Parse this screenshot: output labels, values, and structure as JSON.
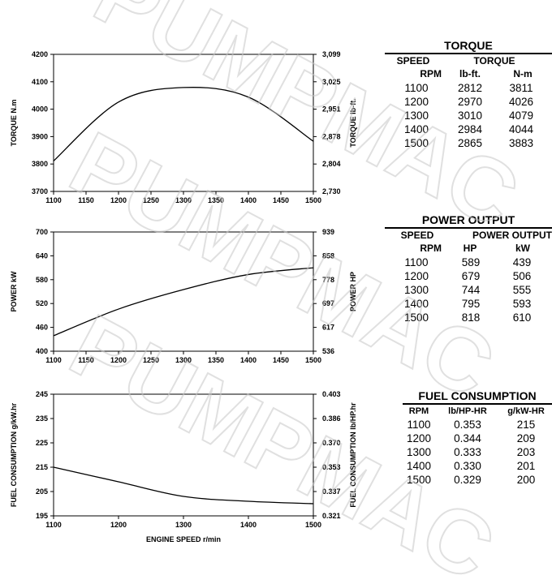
{
  "chart_data": [
    {
      "type": "line",
      "name": "torque",
      "x": [
        1100,
        1200,
        1300,
        1400,
        1500
      ],
      "series": [
        {
          "values": [
            3811,
            4026,
            4079,
            4044,
            3883
          ]
        }
      ],
      "xlim": [
        1100,
        1500
      ],
      "xticks": [
        "1100",
        "1150",
        "1200",
        "1250",
        "1300",
        "1350",
        "1400",
        "1450",
        "1500"
      ],
      "ylim": [
        3700,
        4200
      ],
      "yticks": [
        "3700",
        "3800",
        "3900",
        "4000",
        "4100",
        "4200"
      ],
      "ylabel": "TORQUE  N.m",
      "y2ticks": [
        "2,730",
        "2,804",
        "2,878",
        "2,951",
        "3,025",
        "3,099"
      ],
      "y2label": "TORQUE  lb-ft.",
      "xlabel": "",
      "grid": false
    },
    {
      "type": "line",
      "name": "power",
      "x": [
        1100,
        1200,
        1300,
        1400,
        1500
      ],
      "series": [
        {
          "values": [
            439,
            506,
            555,
            593,
            610
          ]
        }
      ],
      "xlim": [
        1100,
        1500
      ],
      "xticks": [
        "1100",
        "1150",
        "1200",
        "1250",
        "1300",
        "1350",
        "1400",
        "1450",
        "1500"
      ],
      "ylim": [
        400,
        700
      ],
      "yticks": [
        "400",
        "460",
        "520",
        "580",
        "640",
        "700"
      ],
      "ylabel": "POWER  kW",
      "y2ticks": [
        "536",
        "617",
        "697",
        "778",
        "858",
        "939"
      ],
      "y2label": "POWER  HP",
      "xlabel": "",
      "grid": false
    },
    {
      "type": "line",
      "name": "fuel",
      "x": [
        1100,
        1200,
        1300,
        1400,
        1500
      ],
      "series": [
        {
          "values": [
            215,
            209,
            203,
            201,
            200
          ]
        }
      ],
      "xlim": [
        1100,
        1500
      ],
      "xticks": [
        "1100",
        "1200",
        "1300",
        "1400",
        "1500"
      ],
      "ylim": [
        195,
        245
      ],
      "yticks": [
        "195",
        "205",
        "215",
        "225",
        "235",
        "245"
      ],
      "ylabel": "FUEL CONSUMPTION   g/kW.hr",
      "y2ticks": [
        "0.321",
        "0.337",
        "0.353",
        "0.370",
        "0.386",
        "0.403"
      ],
      "y2label": "FUEL CONSUMPTION   lb/HP.hr",
      "xlabel": "ENGINE SPEED   r/min",
      "grid": false
    }
  ],
  "tables": {
    "torque": {
      "title": "TORQUE",
      "h1": [
        "SPEED",
        "TORQUE"
      ],
      "h2": [
        "RPM",
        "lb-ft.",
        "N-m"
      ],
      "rows": [
        [
          "1100",
          "2812",
          "3811"
        ],
        [
          "1200",
          "2970",
          "4026"
        ],
        [
          "1300",
          "3010",
          "4079"
        ],
        [
          "1400",
          "2984",
          "4044"
        ],
        [
          "1500",
          "2865",
          "3883"
        ]
      ]
    },
    "power": {
      "title": "POWER OUTPUT",
      "h1": [
        "SPEED",
        "POWER OUTPUT"
      ],
      "h2": [
        "RPM",
        "HP",
        "kW"
      ],
      "rows": [
        [
          "1100",
          "589",
          "439"
        ],
        [
          "1200",
          "679",
          "506"
        ],
        [
          "1300",
          "744",
          "555"
        ],
        [
          "1400",
          "795",
          "593"
        ],
        [
          "1500",
          "818",
          "610"
        ]
      ]
    },
    "fuel": {
      "title": "FUEL CONSUMPTION",
      "h2": [
        "RPM",
        "lb/HP-HR",
        "g/kW-HR"
      ],
      "rows": [
        [
          "1100",
          "0.353",
          "215"
        ],
        [
          "1200",
          "0.344",
          "209"
        ],
        [
          "1300",
          "0.333",
          "203"
        ],
        [
          "1400",
          "0.330",
          "201"
        ],
        [
          "1500",
          "0.329",
          "200"
        ]
      ]
    }
  },
  "watermark": {
    "text": "PUMPMAC",
    "color": "#c8c8c8"
  },
  "colors": {
    "line": "#000000",
    "watermark": "#c8c8c8"
  }
}
